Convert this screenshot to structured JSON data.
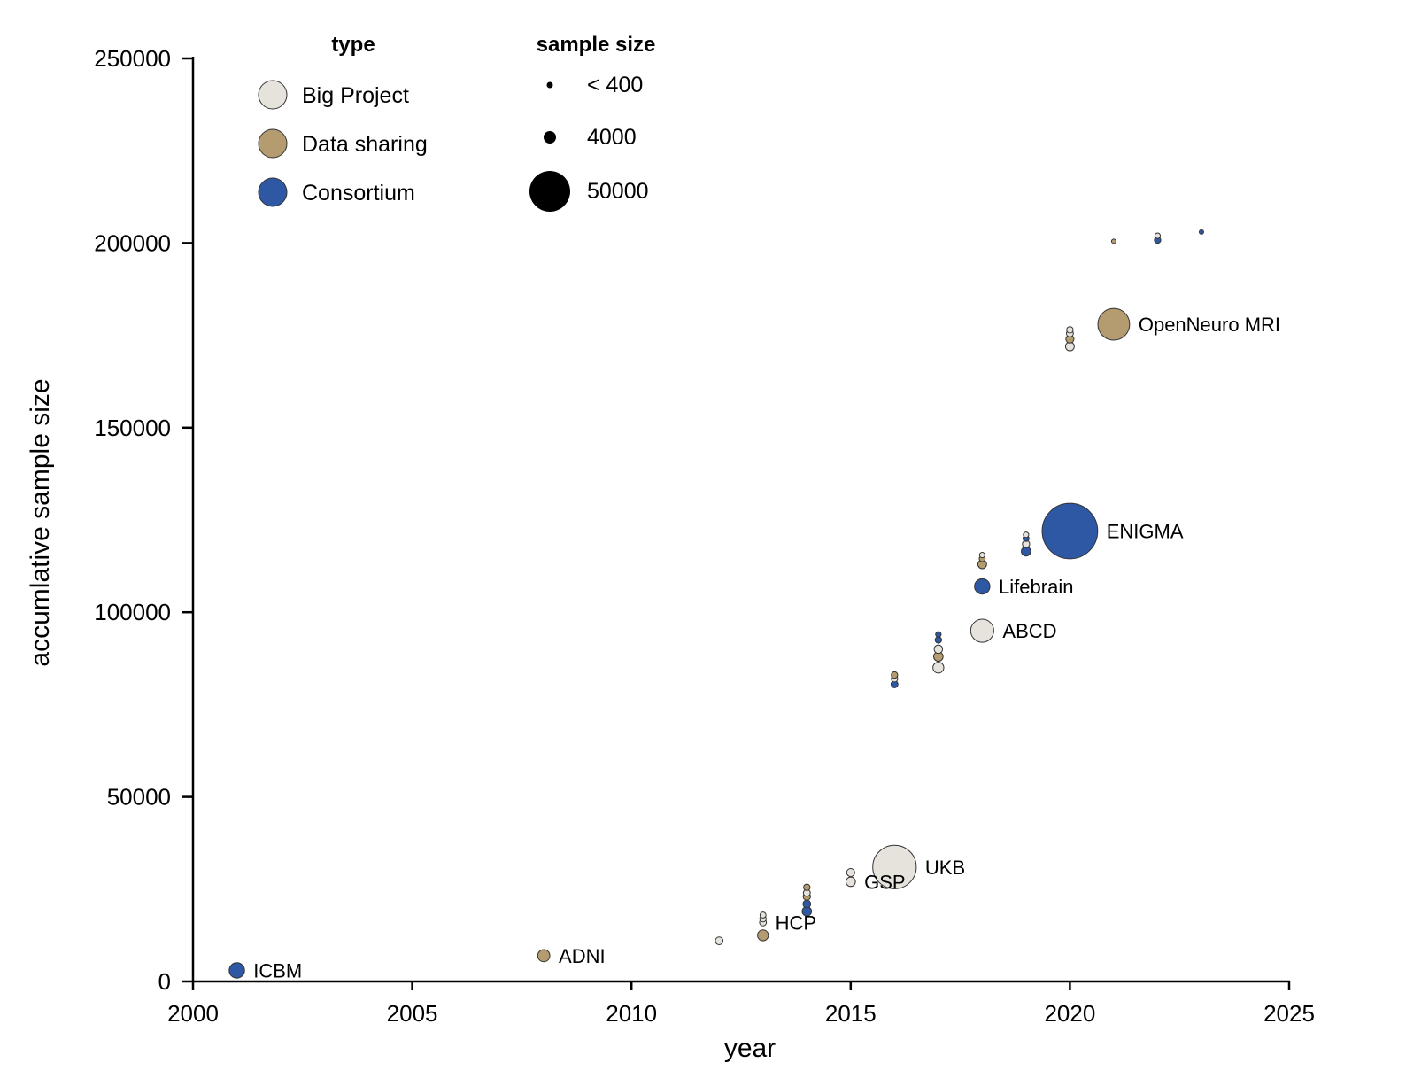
{
  "chart_data": {
    "type": "scatter",
    "title": "",
    "xlabel": "year",
    "ylabel": "accumlative sample size",
    "xlim": [
      2000,
      2025
    ],
    "ylim": [
      0,
      250000
    ],
    "xticks": [
      2000,
      2005,
      2010,
      2015,
      2020,
      2025
    ],
    "yticks": [
      0,
      50000,
      100000,
      150000,
      200000,
      250000
    ],
    "grid": false,
    "colors": {
      "Big Project": "#e6e3dc",
      "Data sharing": "#b49c70",
      "Consortium": "#2f58a4"
    },
    "legend_type": {
      "title": "type",
      "placement": "top-left",
      "entries": [
        "Big Project",
        "Data sharing",
        "Consortium"
      ]
    },
    "legend_size": {
      "title": "sample size",
      "entries": [
        {
          "label": "< 400",
          "size": 400
        },
        {
          "label": "4000",
          "size": 4000
        },
        {
          "label": "50000",
          "size": 50000
        }
      ]
    },
    "points": [
      {
        "x": 2001,
        "y": 3000,
        "size": 4000,
        "type": "Consortium",
        "label": "ICBM"
      },
      {
        "x": 2008,
        "y": 7000,
        "size": 2500,
        "type": "Data sharing",
        "label": "ADNI"
      },
      {
        "x": 2012,
        "y": 11000,
        "size": 1000,
        "type": "Big Project",
        "label": ""
      },
      {
        "x": 2013,
        "y": 12500,
        "size": 2000,
        "type": "Data sharing",
        "label": ""
      },
      {
        "x": 2013,
        "y": 16000,
        "size": 800,
        "type": "Big Project",
        "label": "HCP"
      },
      {
        "x": 2013,
        "y": 17000,
        "size": 700,
        "type": "Big Project",
        "label": ""
      },
      {
        "x": 2013,
        "y": 18000,
        "size": 600,
        "type": "Big Project",
        "label": ""
      },
      {
        "x": 2014,
        "y": 19000,
        "size": 1500,
        "type": "Consortium",
        "label": ""
      },
      {
        "x": 2014,
        "y": 21000,
        "size": 1000,
        "type": "Consortium",
        "label": ""
      },
      {
        "x": 2014,
        "y": 23000,
        "size": 900,
        "type": "Data sharing",
        "label": ""
      },
      {
        "x": 2014,
        "y": 24000,
        "size": 800,
        "type": "Big Project",
        "label": ""
      },
      {
        "x": 2014,
        "y": 25500,
        "size": 700,
        "type": "Data sharing",
        "label": ""
      },
      {
        "x": 2015,
        "y": 27000,
        "size": 1500,
        "type": "Big Project",
        "label": "GSP"
      },
      {
        "x": 2015,
        "y": 29500,
        "size": 1100,
        "type": "Big Project",
        "label": ""
      },
      {
        "x": 2016,
        "y": 31000,
        "size": 32000,
        "type": "Big Project",
        "label": "UKB"
      },
      {
        "x": 2016,
        "y": 80500,
        "size": 800,
        "type": "Consortium",
        "label": ""
      },
      {
        "x": 2016,
        "y": 82000,
        "size": 700,
        "type": "Big Project",
        "label": ""
      },
      {
        "x": 2016,
        "y": 83000,
        "size": 700,
        "type": "Data sharing",
        "label": ""
      },
      {
        "x": 2017,
        "y": 85000,
        "size": 2000,
        "type": "Big Project",
        "label": ""
      },
      {
        "x": 2017,
        "y": 88000,
        "size": 1500,
        "type": "Data sharing",
        "label": ""
      },
      {
        "x": 2017,
        "y": 90000,
        "size": 1200,
        "type": "Big Project",
        "label": ""
      },
      {
        "x": 2017,
        "y": 92500,
        "size": 700,
        "type": "Consortium",
        "label": ""
      },
      {
        "x": 2017,
        "y": 94000,
        "size": 500,
        "type": "Consortium",
        "label": ""
      },
      {
        "x": 2018,
        "y": 95000,
        "size": 9000,
        "type": "Big Project",
        "label": "ABCD"
      },
      {
        "x": 2018,
        "y": 107000,
        "size": 4000,
        "type": "Consortium",
        "label": "Lifebrain"
      },
      {
        "x": 2018,
        "y": 113000,
        "size": 1300,
        "type": "Data sharing",
        "label": ""
      },
      {
        "x": 2018,
        "y": 114500,
        "size": 600,
        "type": "Data sharing",
        "label": ""
      },
      {
        "x": 2018,
        "y": 115500,
        "size": 500,
        "type": "Big Project",
        "label": ""
      },
      {
        "x": 2019,
        "y": 116500,
        "size": 1500,
        "type": "Consortium",
        "label": ""
      },
      {
        "x": 2019,
        "y": 118500,
        "size": 900,
        "type": "Big Project",
        "label": ""
      },
      {
        "x": 2019,
        "y": 120000,
        "size": 600,
        "type": "Consortium",
        "label": ""
      },
      {
        "x": 2019,
        "y": 121000,
        "size": 500,
        "type": "Big Project",
        "label": ""
      },
      {
        "x": 2020,
        "y": 122000,
        "size": 52000,
        "type": "Consortium",
        "label": "ENIGMA"
      },
      {
        "x": 2020,
        "y": 172000,
        "size": 1300,
        "type": "Big Project",
        "label": ""
      },
      {
        "x": 2020,
        "y": 174000,
        "size": 1100,
        "type": "Data sharing",
        "label": ""
      },
      {
        "x": 2020,
        "y": 175500,
        "size": 800,
        "type": "Big Project",
        "label": ""
      },
      {
        "x": 2020,
        "y": 176500,
        "size": 700,
        "type": "Big Project",
        "label": ""
      },
      {
        "x": 2021,
        "y": 178000,
        "size": 17000,
        "type": "Data sharing",
        "label": "OpenNeuro MRI"
      },
      {
        "x": 2021,
        "y": 200500,
        "size": 200,
        "type": "Data sharing",
        "label": ""
      },
      {
        "x": 2022,
        "y": 200800,
        "size": 700,
        "type": "Consortium",
        "label": ""
      },
      {
        "x": 2022,
        "y": 202000,
        "size": 500,
        "type": "Big Project",
        "label": ""
      },
      {
        "x": 2023,
        "y": 203000,
        "size": 200,
        "type": "Consortium",
        "label": ""
      }
    ]
  }
}
